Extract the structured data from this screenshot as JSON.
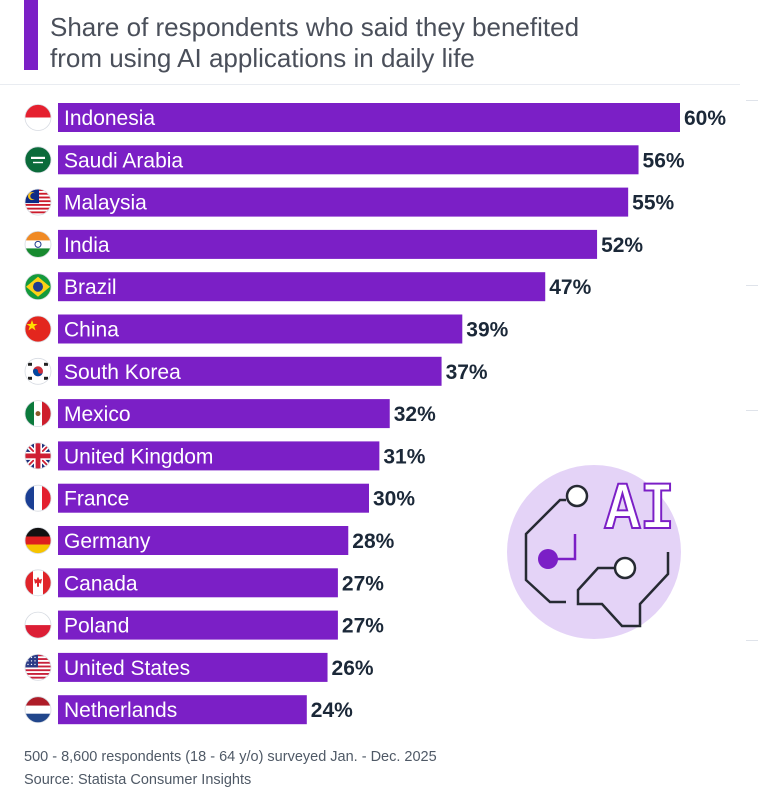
{
  "chart_data": {
    "type": "bar",
    "orientation": "horizontal",
    "title": "Share of respondents who said they benefited from using AI applications in daily life",
    "categories": [
      "Indonesia",
      "Saudi Arabia",
      "Malaysia",
      "India",
      "Brazil",
      "China",
      "South Korea",
      "Mexico",
      "United Kingdom",
      "France",
      "Germany",
      "Canada",
      "Poland",
      "United States",
      "Netherlands"
    ],
    "values": [
      60,
      56,
      55,
      52,
      47,
      39,
      37,
      32,
      31,
      30,
      28,
      27,
      27,
      26,
      24
    ],
    "value_labels": [
      "60%",
      "56%",
      "55%",
      "52%",
      "47%",
      "39%",
      "37%",
      "32%",
      "31%",
      "30%",
      "28%",
      "27%",
      "27%",
      "26%",
      "24%"
    ],
    "unit": "%",
    "xlim": [
      0,
      60
    ],
    "bar_color": "#7b1fc6",
    "illustration_text": "AI"
  },
  "footer": {
    "note": "500 - 8,600 respondents (18 - 64 y/o) surveyed Jan. - Dec. 2025",
    "source": "Source: Statista Consumer Insights"
  },
  "flag_icons": [
    "indonesia-flag-icon",
    "saudi-arabia-flag-icon",
    "malaysia-flag-icon",
    "india-flag-icon",
    "brazil-flag-icon",
    "china-flag-icon",
    "south-korea-flag-icon",
    "mexico-flag-icon",
    "united-kingdom-flag-icon",
    "france-flag-icon",
    "germany-flag-icon",
    "canada-flag-icon",
    "poland-flag-icon",
    "united-states-flag-icon",
    "netherlands-flag-icon"
  ]
}
